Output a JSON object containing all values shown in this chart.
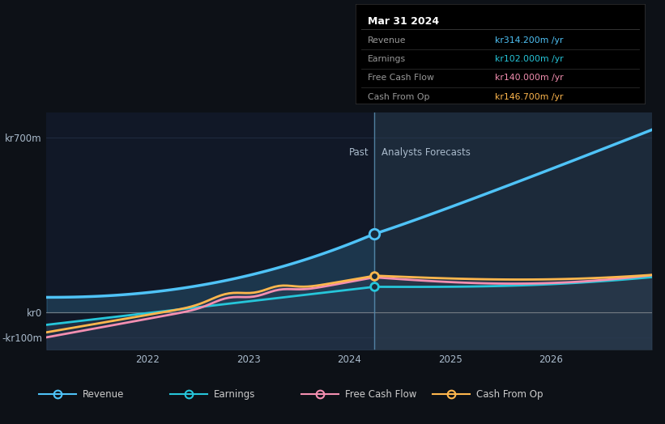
{
  "bg_color": "#0d1117",
  "plot_bg_color": "#111827",
  "forecast_bg_color": "#1c2a3a",
  "title": "Mar 31 2024",
  "ylabel_700": "kr700m",
  "ylabel_0": "kr0",
  "ylabel_neg100": "-kr100m",
  "past_label": "Past",
  "forecast_label": "Analysts Forecasts",
  "divider_x": 2024.25,
  "x_start": 2021.0,
  "x_end": 2027.0,
  "revenue_color": "#4fc3f7",
  "earnings_color": "#26c6da",
  "fcf_color": "#f48fb1",
  "cashop_color": "#ffb74d",
  "legend_entries": [
    "Revenue",
    "Earnings",
    "Free Cash Flow",
    "Cash From Op"
  ],
  "tooltip": {
    "date": "Mar 31 2024",
    "Revenue": "kr314.200m /yr",
    "Earnings": "kr102.000m /yr",
    "Free Cash Flow": "kr140.000m /yr",
    "Cash From Op": "kr146.700m /yr",
    "revenue_color": "#4fc3f7",
    "earnings_color": "#26c6da",
    "fcf_color": "#f48fb1",
    "cashop_color": "#ffb74d"
  },
  "yticks": [
    700,
    0,
    -100
  ],
  "xlim": [
    2021.0,
    2027.0
  ],
  "ylim": [
    -150,
    800
  ]
}
